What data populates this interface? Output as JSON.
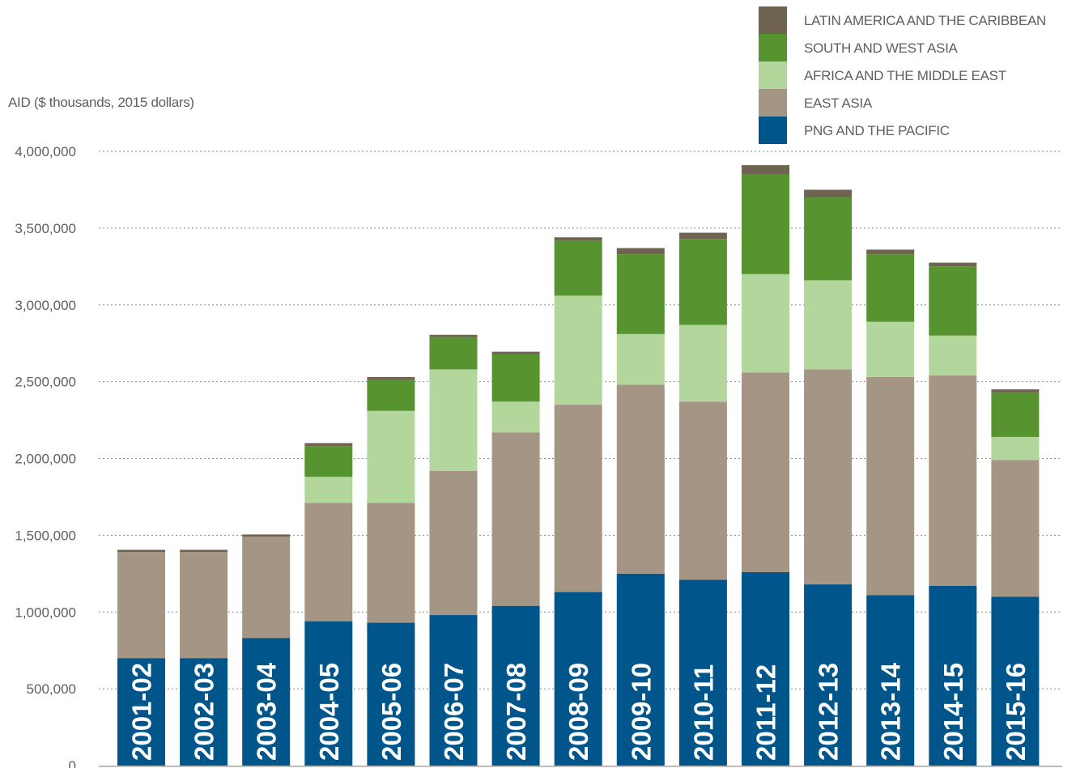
{
  "chart_data": {
    "type": "bar",
    "stacked": true,
    "ylabel": "AID ($ thousands, 2015 dollars)",
    "ylim": [
      0,
      4000000
    ],
    "yticks": [
      "0",
      "500,000",
      "1,000,000",
      "1,500,000",
      "2,000,000",
      "2,500,000",
      "3,000,000",
      "3,500,000",
      "4,000,000"
    ],
    "grid": true,
    "legend_position": "top-right",
    "categories": [
      "2001-02",
      "2002-03",
      "2003-04",
      "2004-05",
      "2005-06",
      "2006-07",
      "2007-08",
      "2008-09",
      "2009-10",
      "2010-11",
      "2011-12",
      "2012-13",
      "2013-14",
      "2014-15",
      "2015-16"
    ],
    "series": [
      {
        "name": "PNG AND THE PACIFIC",
        "color": "#00558a",
        "values": [
          700000,
          700000,
          830000,
          940000,
          930000,
          980000,
          1040000,
          1130000,
          1250000,
          1210000,
          1260000,
          1180000,
          1110000,
          1170000,
          1100000
        ]
      },
      {
        "name": "EAST ASIA",
        "color": "#a49584",
        "values": [
          690000,
          690000,
          660000,
          770000,
          780000,
          940000,
          1130000,
          1220000,
          1230000,
          1160000,
          1300000,
          1400000,
          1420000,
          1370000,
          890000
        ]
      },
      {
        "name": "AFRICA AND THE MIDDLE EAST",
        "color": "#b3d69c",
        "values": [
          0,
          0,
          0,
          170000,
          600000,
          660000,
          200000,
          710000,
          330000,
          500000,
          640000,
          580000,
          360000,
          260000,
          150000
        ]
      },
      {
        "name": "SOUTH AND WEST ASIA",
        "color": "#57942f",
        "values": [
          0,
          0,
          0,
          200000,
          200000,
          210000,
          310000,
          360000,
          520000,
          560000,
          650000,
          540000,
          440000,
          450000,
          290000
        ]
      },
      {
        "name": "LATIN AMERICA AND THE CARIBBEAN",
        "color": "#6e6451",
        "values": [
          15000,
          15000,
          15000,
          20000,
          20000,
          15000,
          15000,
          20000,
          40000,
          40000,
          60000,
          50000,
          30000,
          25000,
          20000
        ]
      }
    ]
  }
}
